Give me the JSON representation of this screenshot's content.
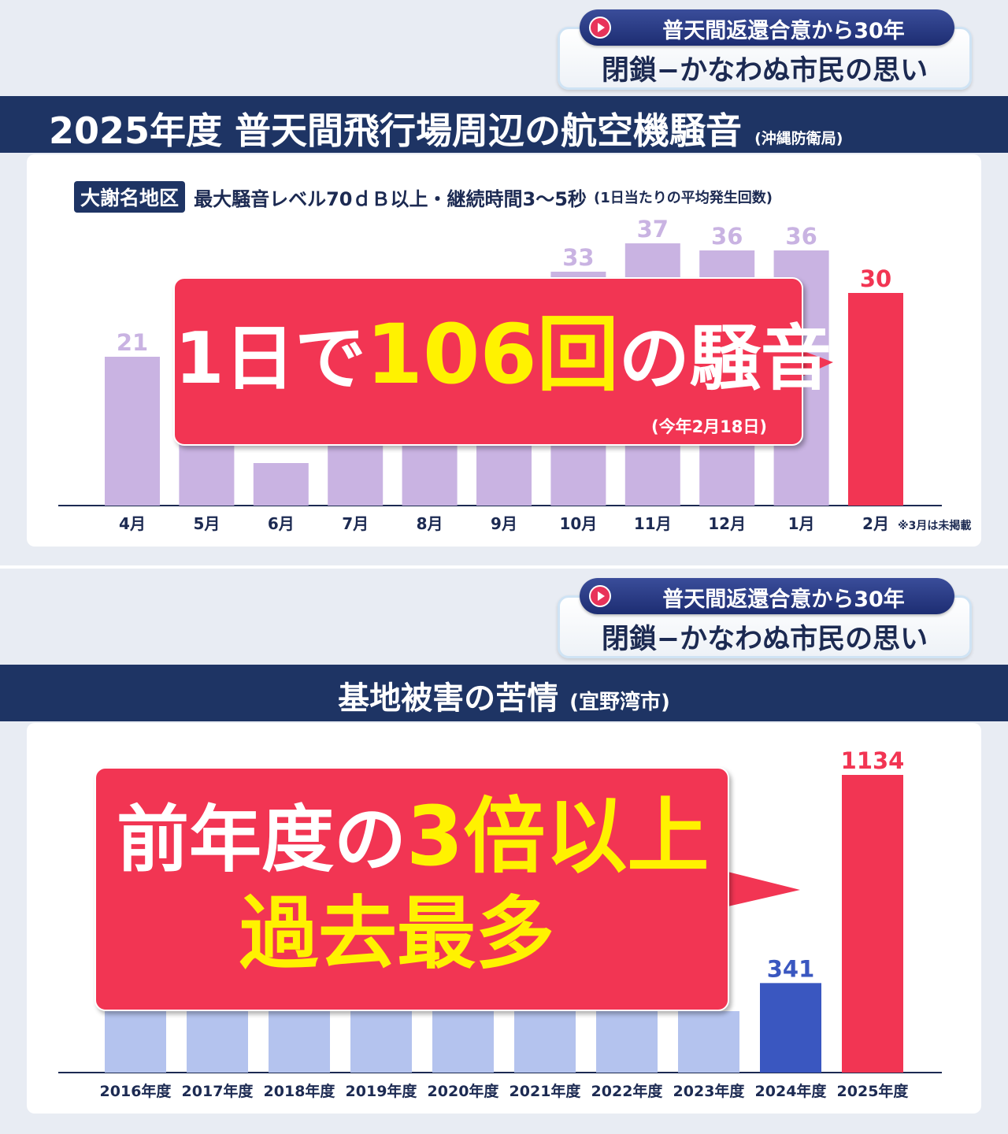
{
  "banner": {
    "line1": "普天間返還合意から30年",
    "line2": "閉鎖−かなわぬ市民の思い"
  },
  "noise_panel": {
    "title": "2025年度 普天間飛行場周辺の航空機騒音",
    "source": "(沖縄防衛局)",
    "area": "大謝名地区",
    "description": "最大騒音レベル70ｄＢ以上・継続時間3〜5秒",
    "note": "(1日当たりの平均発生回数)",
    "callout_prefix": "1日で",
    "callout_number": "106回",
    "callout_suffix": "の騒音",
    "callout_date": "(今年2月18日)",
    "footnote": "※3月は未掲載"
  },
  "complaint_panel": {
    "title": "基地被害の苦情",
    "source": "(宜野湾市)",
    "callout_prefix": "前年度の",
    "callout_highlight": "3倍以上",
    "callout_line2": "過去最多"
  },
  "colors": {
    "navy": "#1e3464",
    "red": "#f23553",
    "lavender": "#c9b3e2",
    "light_blue": "#b4c3ee",
    "blue": "#3a57c0",
    "yellow": "#fff200"
  },
  "chart_data": [
    {
      "type": "bar",
      "categories": [
        "4月",
        "5月",
        "6月",
        "7月",
        "8月",
        "9月",
        "10月",
        "11月",
        "12月",
        "1月",
        "2月"
      ],
      "values": [
        21,
        null,
        6,
        null,
        null,
        null,
        33,
        37,
        36,
        36,
        30
      ],
      "visible_labels": [
        "21",
        null,
        "",
        null,
        null,
        null,
        "33",
        "37",
        "36",
        "36",
        "30"
      ],
      "highlight_index": 10,
      "ylim": [
        0,
        40
      ],
      "title": "2025年度 普天間飛行場周辺の航空機騒音"
    },
    {
      "type": "bar",
      "categories": [
        "2016年度",
        "2017年度",
        "2018年度",
        "2019年度",
        "2020年度",
        "2021年度",
        "2022年度",
        "2023年度",
        "2024年度",
        "2025年度"
      ],
      "values": [
        null,
        null,
        null,
        null,
        null,
        null,
        null,
        null,
        341,
        1134
      ],
      "visible_labels": [
        null,
        null,
        null,
        null,
        null,
        null,
        null,
        null,
        "341",
        "1134"
      ],
      "highlight_index": 9,
      "ylim": [
        0,
        1200
      ],
      "title": "基地被害の苦情"
    }
  ]
}
